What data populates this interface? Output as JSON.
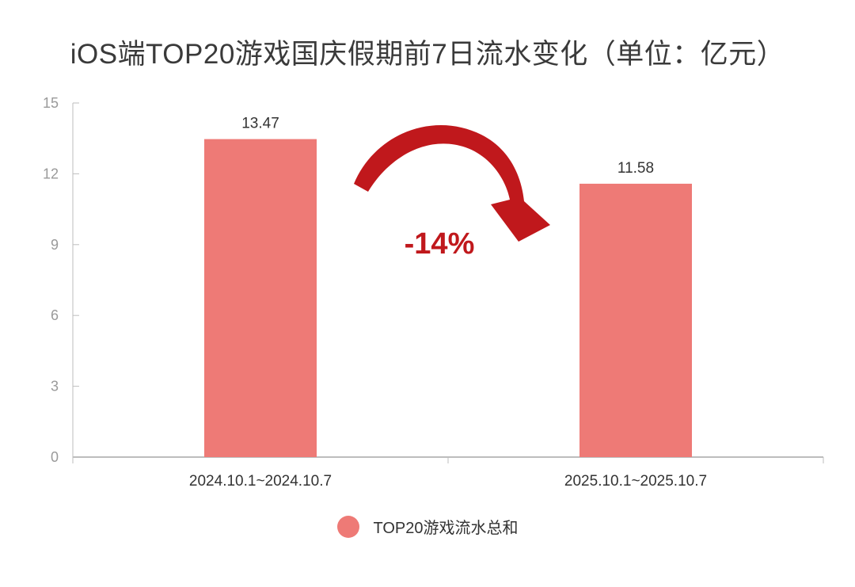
{
  "chart_data": {
    "type": "bar",
    "title": "iOS端TOP20游戏国庆假期前7日流水变化（单位：亿元）",
    "categories": [
      "2024.10.1~2024.10.7",
      "2025.10.1~2025.10.7"
    ],
    "series": [
      {
        "name": "TOP20游戏流水总和",
        "values": [
          13.47,
          11.58
        ]
      }
    ],
    "data_labels": [
      "13.47",
      "11.58"
    ],
    "ylim": [
      0,
      15
    ],
    "yticks": [
      0,
      3,
      6,
      9,
      12,
      15
    ],
    "ytick_labels": [
      "0",
      "3",
      "6",
      "9",
      "12",
      "15"
    ],
    "grid": false,
    "legend_position": "bottom",
    "annotation": {
      "text": "-14%",
      "arrow": "curved arrow from first bar to second bar"
    },
    "colors": {
      "bar": "#ee7a76",
      "arrow": "#c0181c",
      "axis": "#bdbdbd"
    }
  }
}
